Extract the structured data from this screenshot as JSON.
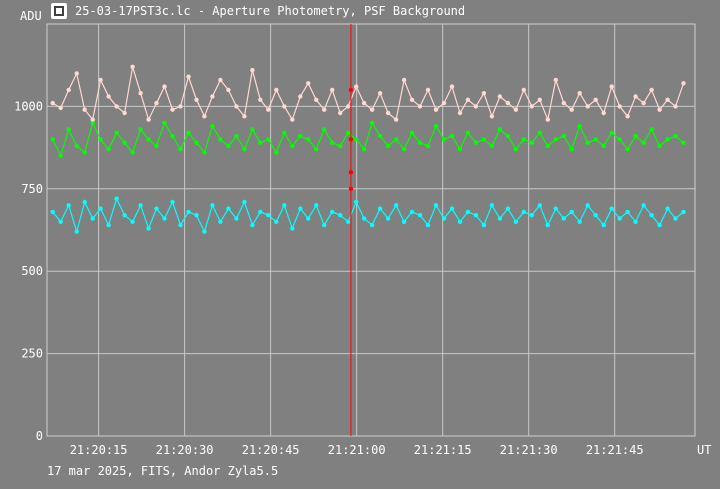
{
  "window": {
    "title": "25-03-17PST3c.lc - Aperture Photometry, PSF Background",
    "icon": "lightcurve-app-icon"
  },
  "footer": {
    "text": "17 mar 2025, FITS, Andor Zyla5.5"
  },
  "chart_data": {
    "type": "line",
    "ylabel": "ADU",
    "xlabel": "UT",
    "ylim": [
      0,
      1250
    ],
    "xlim": [
      "21:20:06",
      "21:21:59"
    ],
    "yticks": [
      0,
      250,
      500,
      750,
      1000
    ],
    "yticklabels": [
      "0",
      "250",
      "500",
      "750",
      "1000"
    ],
    "xticks": [
      "21:20:15",
      "21:20:30",
      "21:20:45",
      "21:21:00",
      "21:21:15",
      "21:21:30",
      "21:21:45"
    ],
    "grid": true,
    "cursor_time": "21:20:59",
    "cursor_values": [
      1050,
      900,
      800,
      800,
      750
    ],
    "series": [
      {
        "color": "#ffd8d0",
        "values": [
          1010,
          995,
          1050,
          1100,
          990,
          960,
          1080,
          1030,
          1000,
          980,
          1120,
          1040,
          960,
          1010,
          1060,
          990,
          1000,
          1090,
          1020,
          970,
          1030,
          1080,
          1050,
          1000,
          970,
          1110,
          1020,
          990,
          1050,
          1000,
          960,
          1030,
          1070,
          1020,
          990,
          1050,
          980,
          1000,
          1060,
          1010,
          990,
          1040,
          980,
          960,
          1080,
          1020,
          1000,
          1050,
          990,
          1010,
          1060,
          980,
          1020,
          1000,
          1040,
          970,
          1030,
          1010,
          990,
          1050,
          1000,
          1020,
          960,
          1080,
          1010,
          990,
          1040,
          1000,
          1020,
          980,
          1060,
          1000,
          970,
          1030,
          1010,
          1050,
          990,
          1020,
          1000,
          1070
        ]
      },
      {
        "color": "#00ff00",
        "values": [
          900,
          850,
          930,
          880,
          860,
          950,
          900,
          870,
          920,
          890,
          860,
          930,
          900,
          880,
          950,
          910,
          870,
          920,
          890,
          860,
          940,
          900,
          880,
          910,
          870,
          930,
          890,
          900,
          860,
          920,
          880,
          910,
          900,
          870,
          930,
          890,
          880,
          920,
          900,
          870,
          950,
          910,
          880,
          900,
          870,
          920,
          890,
          880,
          940,
          900,
          910,
          870,
          920,
          890,
          900,
          880,
          930,
          910,
          870,
          900,
          890,
          920,
          880,
          900,
          910,
          870,
          940,
          890,
          900,
          880,
          920,
          900,
          870,
          910,
          890,
          930,
          880,
          900,
          910,
          890
        ]
      },
      {
        "color": "#00ffff",
        "values": [
          680,
          650,
          700,
          620,
          710,
          660,
          690,
          640,
          720,
          670,
          650,
          700,
          630,
          690,
          660,
          710,
          640,
          680,
          670,
          620,
          700,
          650,
          690,
          660,
          710,
          640,
          680,
          670,
          650,
          700,
          630,
          690,
          660,
          700,
          640,
          680,
          670,
          650,
          710,
          660,
          640,
          690,
          660,
          700,
          650,
          680,
          670,
          640,
          700,
          660,
          690,
          650,
          680,
          670,
          640,
          700,
          660,
          690,
          650,
          680,
          670,
          700,
          640,
          690,
          660,
          680,
          650,
          700,
          670,
          640,
          690,
          660,
          680,
          650,
          700,
          670,
          640,
          690,
          660,
          680
        ]
      }
    ]
  }
}
